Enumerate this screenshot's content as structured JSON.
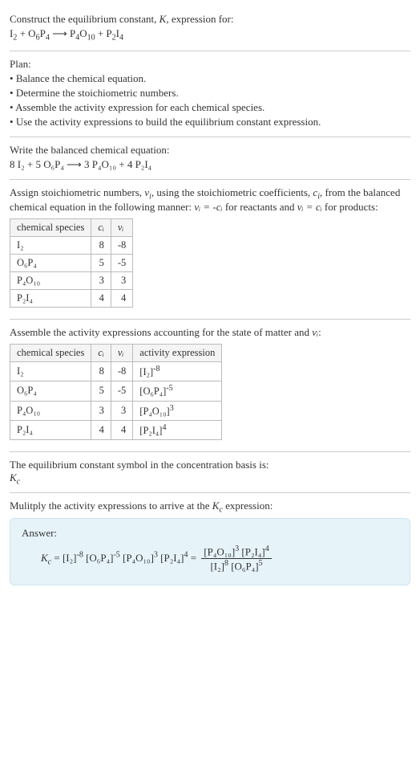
{
  "intro": {
    "line1": "Construct the equilibrium constant, ",
    "K": "K",
    "line1b": ", expression for:",
    "eq_lhs_parts": [
      [
        "I",
        "2"
      ],
      [
        " + "
      ],
      [
        "O",
        "6"
      ],
      [
        "P",
        "4"
      ]
    ],
    "arrow": " ⟶ ",
    "eq_rhs_parts": [
      [
        "P",
        "4"
      ],
      [
        "O",
        "10"
      ],
      [
        " + "
      ],
      [
        "P",
        "2"
      ],
      [
        "I",
        "4"
      ]
    ]
  },
  "plan": {
    "title": "Plan:",
    "items": [
      "Balance the chemical equation.",
      "Determine the stoichiometric numbers.",
      "Assemble the activity expression for each chemical species.",
      "Use the activity expressions to build the equilibrium constant expression."
    ]
  },
  "balanced": {
    "title": "Write the balanced chemical equation:",
    "lhs": "8 I₂ + 5 O₆P₄",
    "arrow": " ⟶ ",
    "rhs": "3 P₄O₁₀ + 4 P₂I₄"
  },
  "assign": {
    "text_a": "Assign stoichiometric numbers, ",
    "nu": "ν",
    "sub_i": "i",
    "text_b": ", using the stoichiometric coefficients, ",
    "c": "c",
    "text_c": ", from the balanced chemical equation in the following manner: ",
    "eq1": "νᵢ = -cᵢ",
    "text_d": " for reactants and ",
    "eq2": "νᵢ = cᵢ",
    "text_e": " for products:"
  },
  "table1": {
    "headers": [
      "chemical species",
      "cᵢ",
      "νᵢ"
    ],
    "rows": [
      [
        "I₂",
        "8",
        "-8"
      ],
      [
        "O₆P₄",
        "5",
        "-5"
      ],
      [
        "P₄O₁₀",
        "3",
        "3"
      ],
      [
        "P₂I₄",
        "4",
        "4"
      ]
    ]
  },
  "assemble_text": {
    "a": "Assemble the activity expressions accounting for the state of matter and ",
    "nu": "νᵢ",
    "b": ":"
  },
  "table2": {
    "headers": [
      "chemical species",
      "cᵢ",
      "νᵢ",
      "activity expression"
    ],
    "rows": [
      {
        "sp": "I₂",
        "c": "8",
        "v": "-8",
        "base": "[I₂]",
        "exp": "-8"
      },
      {
        "sp": "O₆P₄",
        "c": "5",
        "v": "-5",
        "base": "[O₆P₄]",
        "exp": "-5"
      },
      {
        "sp": "P₄O₁₀",
        "c": "3",
        "v": "3",
        "base": "[P₄O₁₀]",
        "exp": "3"
      },
      {
        "sp": "P₂I₄",
        "c": "4",
        "v": "4",
        "base": "[P₂I₄]",
        "exp": "4"
      }
    ]
  },
  "symbol_text": {
    "a": "The equilibrium constant symbol in the concentration basis is:",
    "kc": "K",
    "kc_sub": "c"
  },
  "multiply_text": {
    "a": "Mulitply the activity expressions to arrive at the ",
    "kc": "K",
    "kc_sub": "c",
    "b": " expression:"
  },
  "answer": {
    "label": "Answer:",
    "kc": "K",
    "kc_sub": "c",
    "eq": " = ",
    "terms": [
      {
        "base": "[I₂]",
        "exp": "-8"
      },
      {
        "base": "[O₆P₄]",
        "exp": "-5"
      },
      {
        "base": "[P₄O₁₀]",
        "exp": "3"
      },
      {
        "base": "[P₂I₄]",
        "exp": "4"
      }
    ],
    "frac_num": [
      {
        "base": "[P₄O₁₀]",
        "exp": "3"
      },
      {
        "base": "[P₂I₄]",
        "exp": "4"
      }
    ],
    "frac_den": [
      {
        "base": "[I₂]",
        "exp": "8"
      },
      {
        "base": "[O₆P₄]",
        "exp": "5"
      }
    ]
  },
  "colors": {
    "border": "#cccccc",
    "table_border": "#bbbbbb",
    "table_header_bg": "#f4f4f4",
    "answer_bg": "#e6f3f9",
    "answer_border": "#cde4ef",
    "text": "#333333"
  }
}
